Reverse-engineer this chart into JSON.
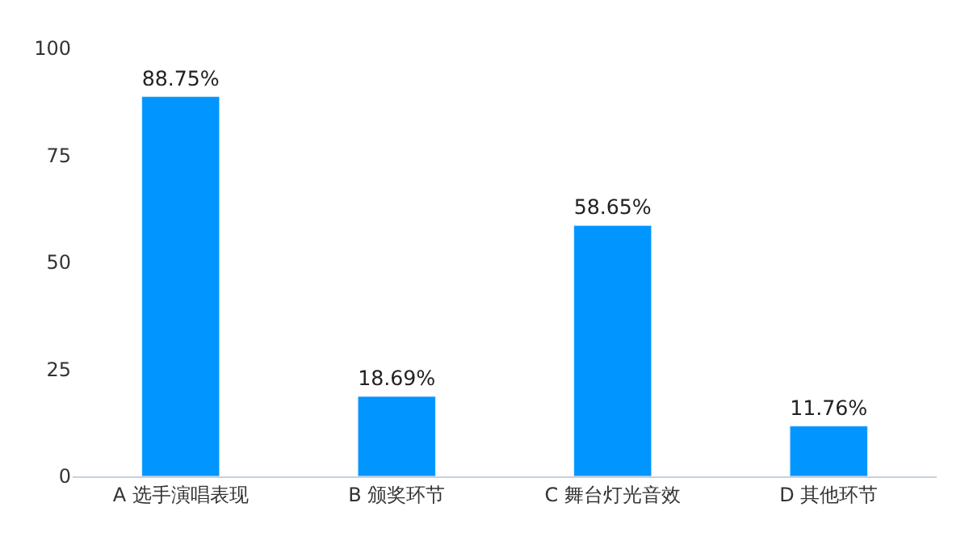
{
  "chart_data": {
    "type": "bar",
    "categories": [
      "A 选手演唱表现",
      "B 颁奖环节",
      "C 舞台灯光音效",
      "D 其他环节"
    ],
    "values": [
      88.75,
      18.69,
      58.65,
      11.76
    ],
    "value_labels": [
      "88.75%",
      "18.69%",
      "58.65%",
      "11.76%"
    ],
    "color": "#0095ff",
    "ylim": [
      0,
      100
    ],
    "yticks": [
      0,
      25,
      50,
      75,
      100
    ],
    "grid": false
  }
}
